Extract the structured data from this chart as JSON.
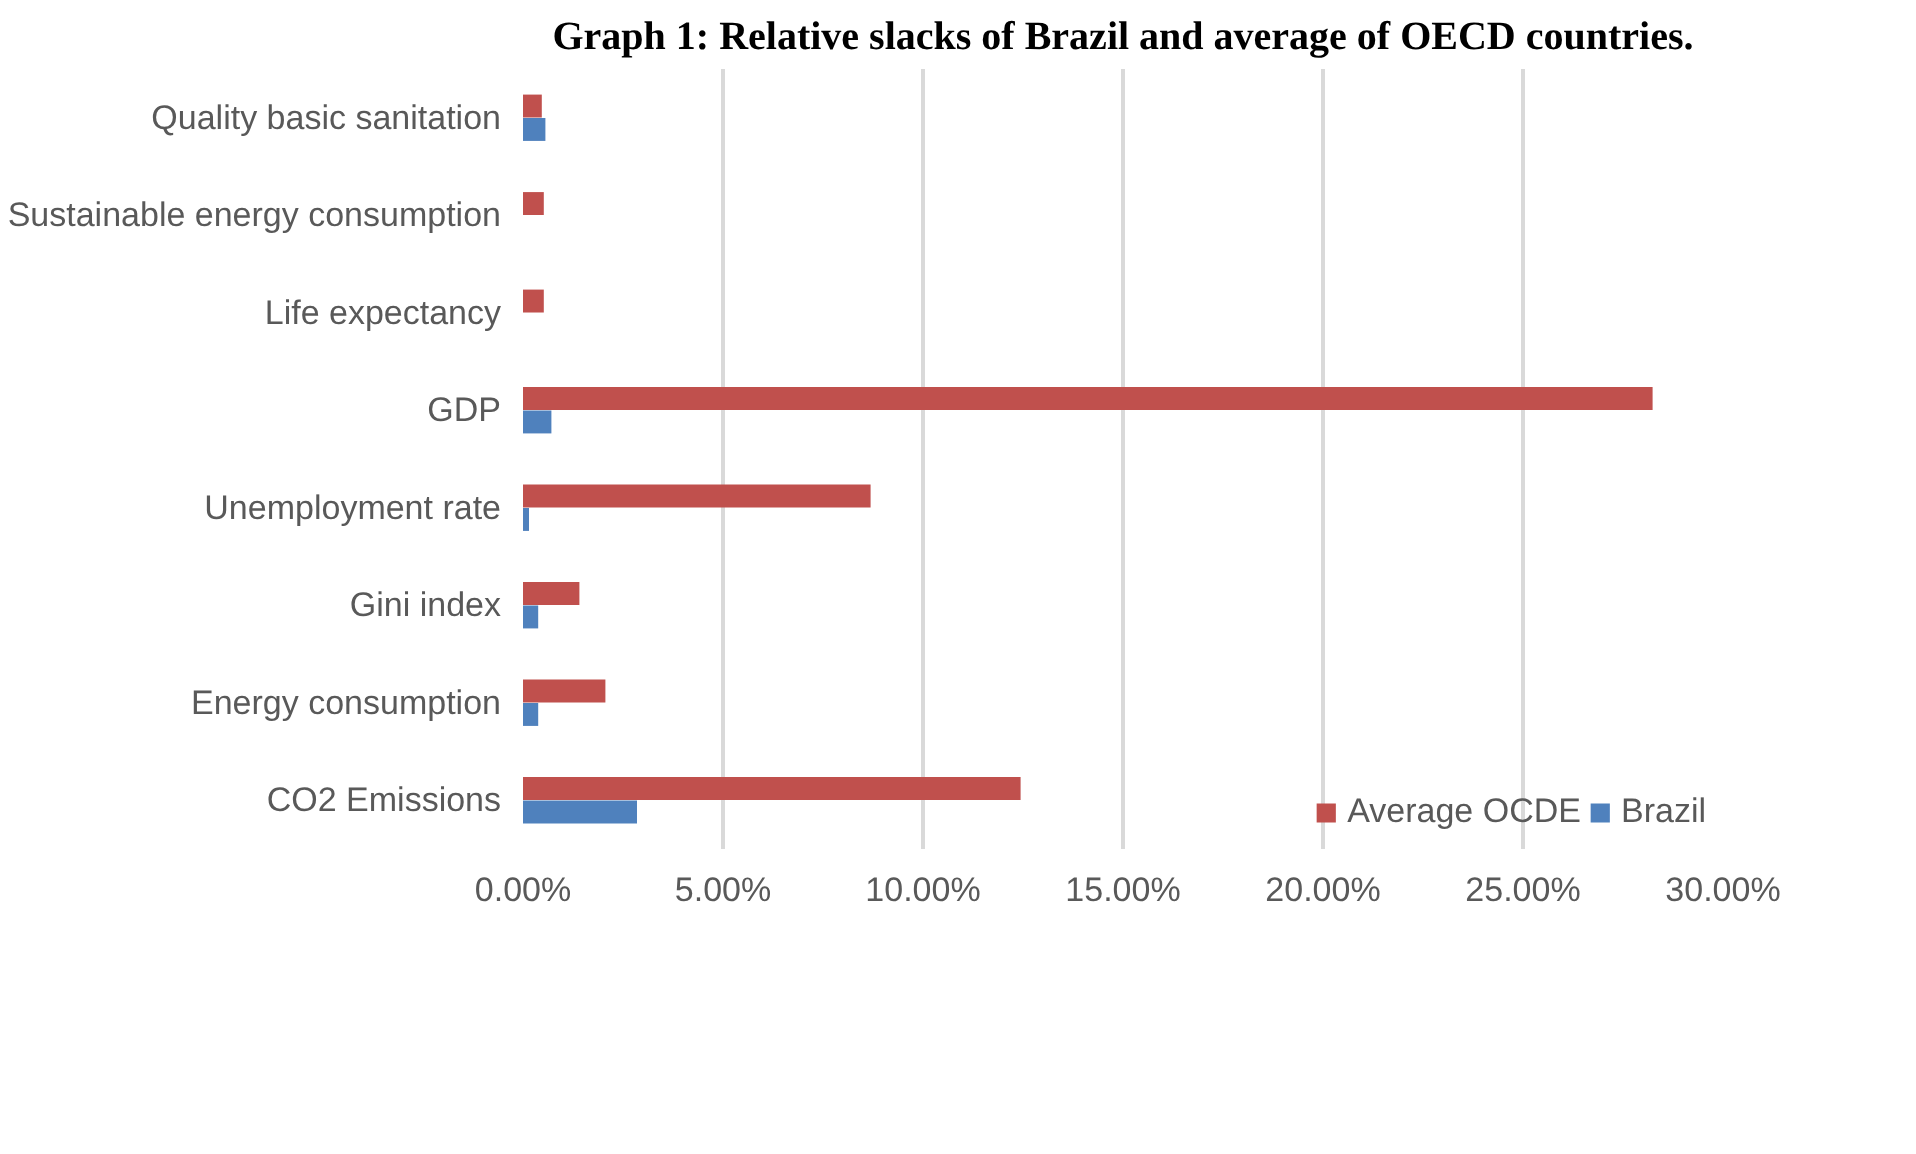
{
  "chart_data": {
    "type": "bar",
    "orientation": "horizontal",
    "title": "Graph 1: Relative slacks of Brazil and average of OECD countries.",
    "categories": [
      "Quality basic sanitation",
      "Sustainable energy consumption",
      "Life expectancy",
      "GDP",
      "Unemployment rate",
      "Gini index",
      "Energy consumption",
      "CO2 Emissions"
    ],
    "series": [
      {
        "name": "Average OCDE",
        "color": "#c0504d",
        "values": [
          0.47,
          0.52,
          0.52,
          28.24,
          8.69,
          1.41,
          2.06,
          12.44
        ]
      },
      {
        "name": "Brazil",
        "color": "#4f81bd",
        "values": [
          0.56,
          0,
          0,
          0.71,
          0.15,
          0.38,
          0.38,
          2.85
        ]
      }
    ],
    "xlim": [
      0,
      30
    ],
    "xticks": [
      {
        "value": 0,
        "label": "0.00%"
      },
      {
        "value": 5,
        "label": "5.00%"
      },
      {
        "value": 10,
        "label": "10.00%"
      },
      {
        "value": 15,
        "label": "15.00%"
      },
      {
        "value": 20,
        "label": "20.00%"
      },
      {
        "value": 25,
        "label": "25.00%"
      },
      {
        "value": 30,
        "label": "30.00%"
      }
    ],
    "grid": "x",
    "legend": "bottom right"
  }
}
